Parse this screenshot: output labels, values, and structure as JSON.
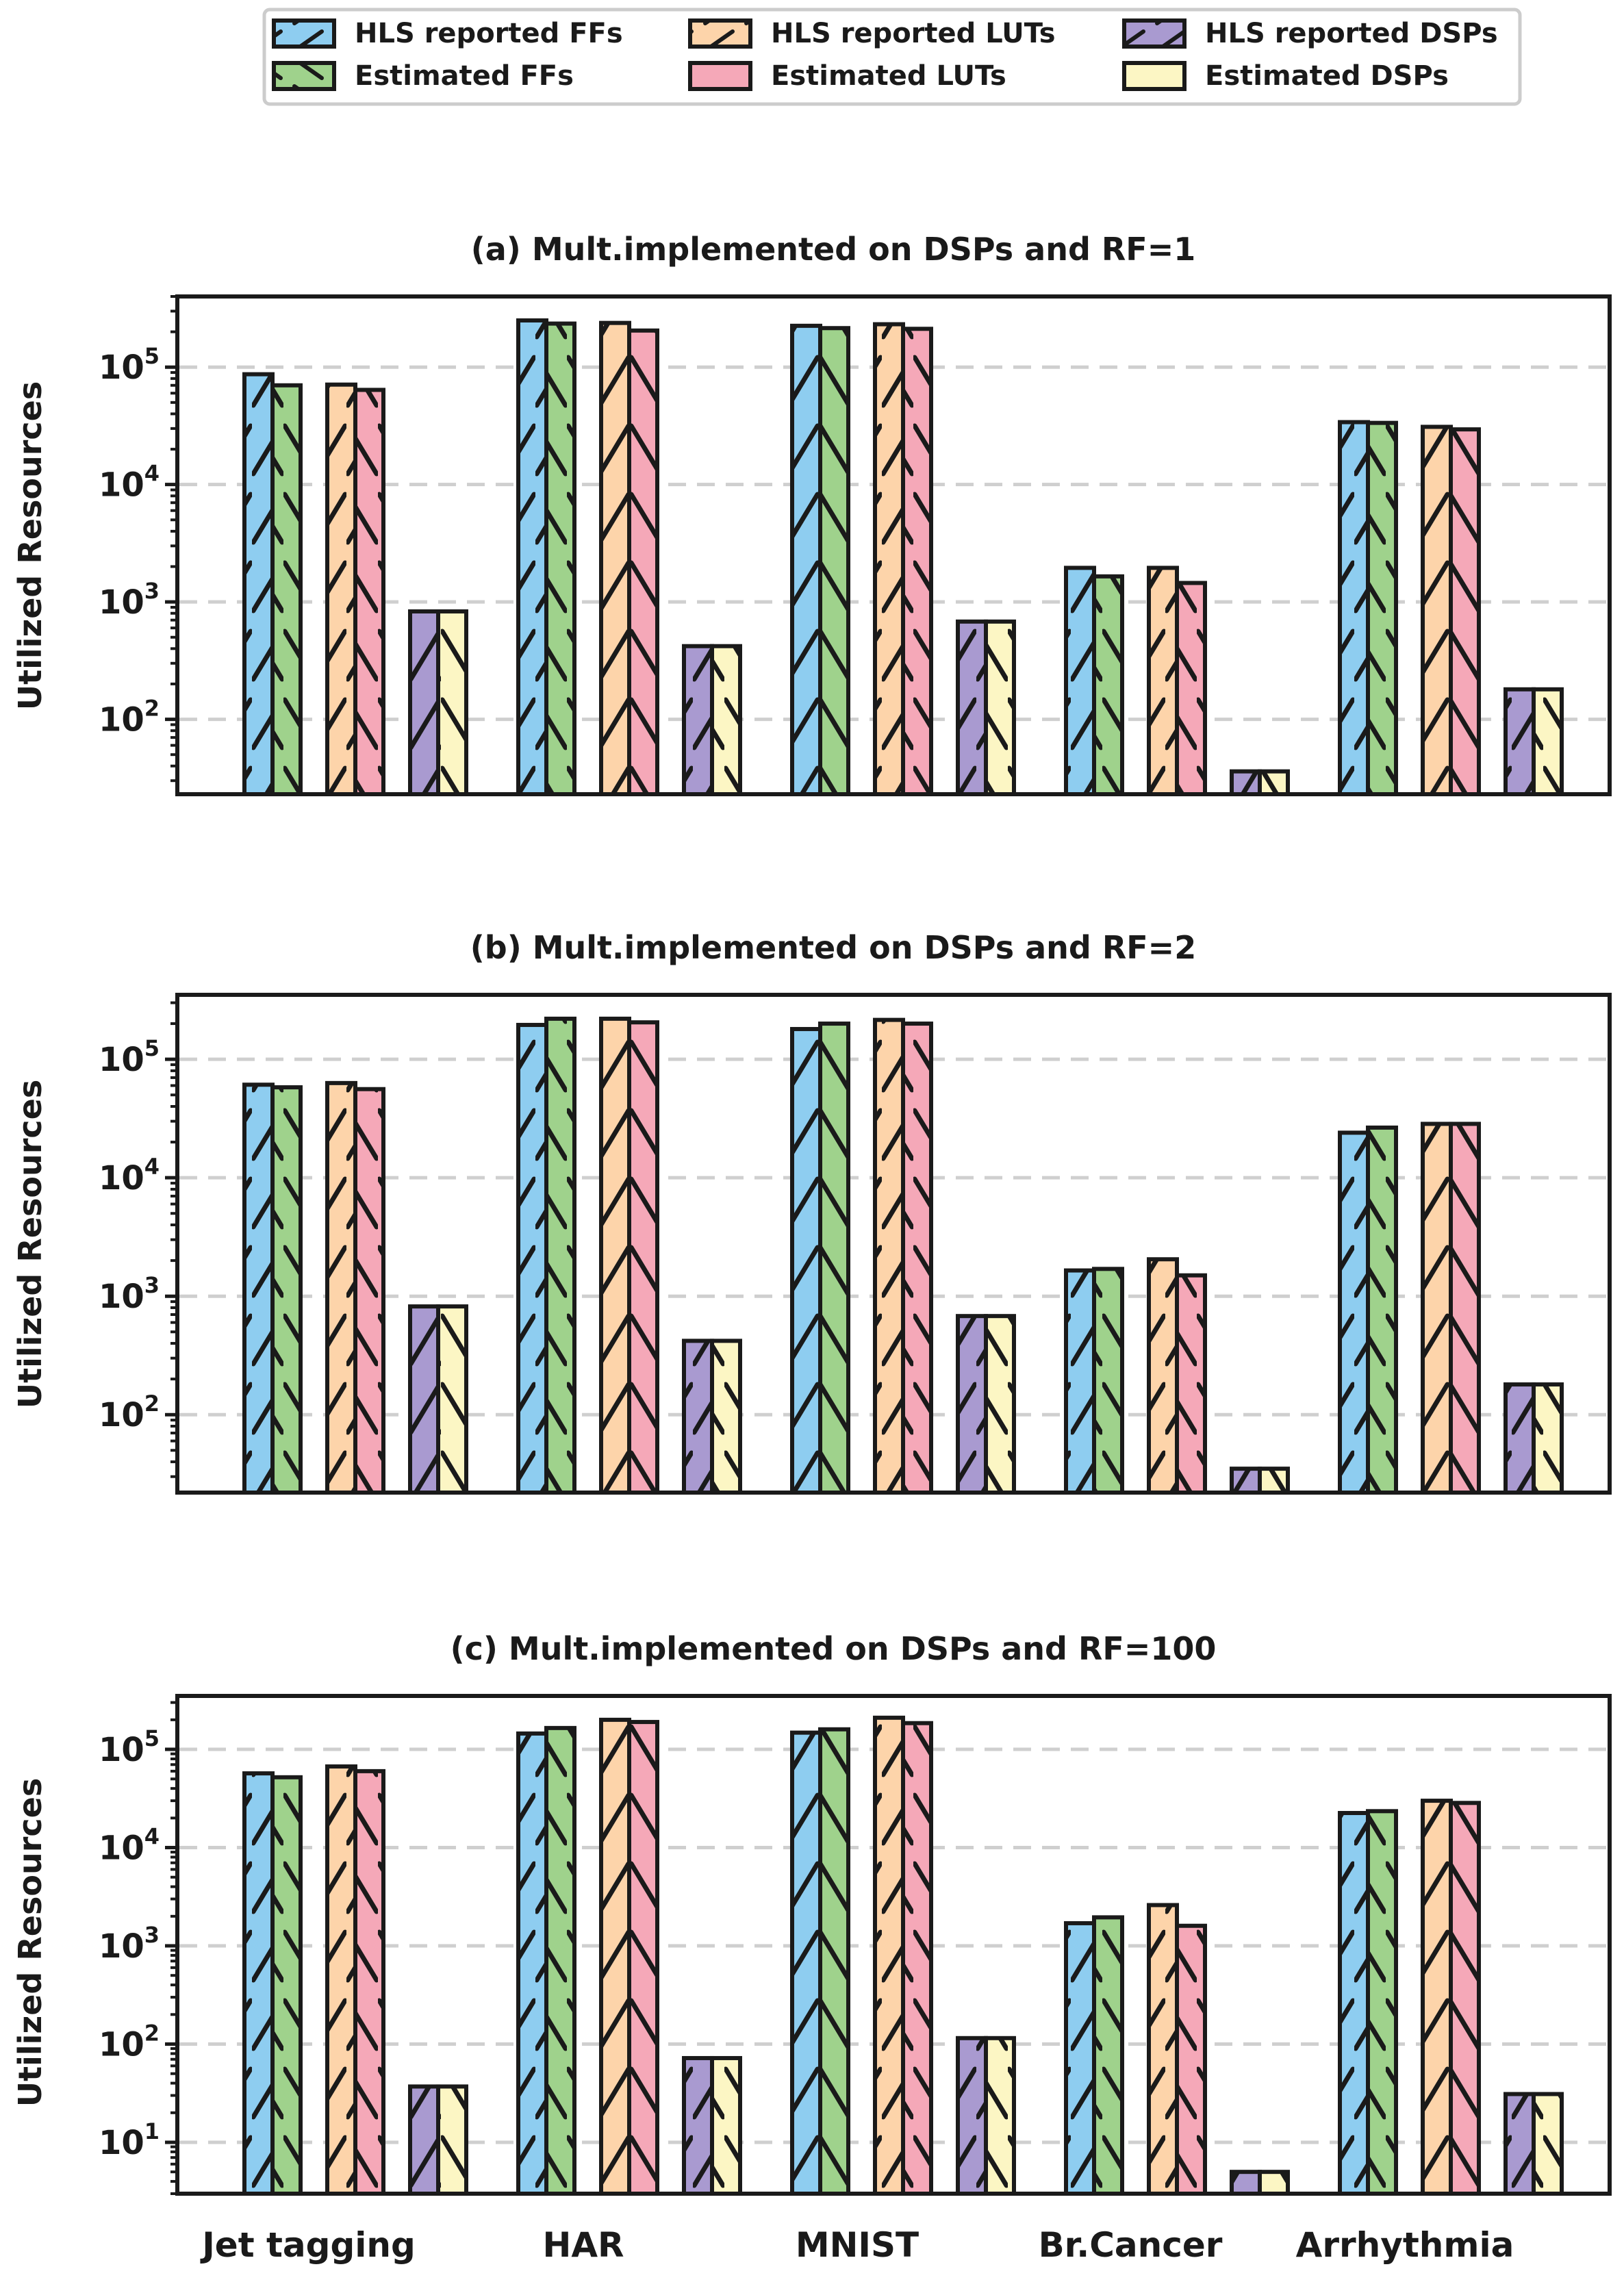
{
  "legend": {
    "entries": [
      {
        "label": "HLS reported FFs",
        "color": "#8ecdf0",
        "hatch": "fwd"
      },
      {
        "label": "Estimated FFs",
        "color": "#9fd28c",
        "hatch": "back"
      },
      {
        "label": "HLS reported LUTs",
        "color": "#fdd4aa",
        "hatch": "fwd"
      },
      {
        "label": "Estimated LUTs",
        "color": "#f5a8b8",
        "hatch": "back"
      },
      {
        "label": "HLS reported DSPs",
        "color": "#a99ad0",
        "hatch": "fwd"
      },
      {
        "label": "Estimated DSPs",
        "color": "#fcf6c4",
        "hatch": "back"
      }
    ]
  },
  "chart_data": [
    {
      "type": "bar",
      "title": "(a) Mult.implemented on DSPs and RF=1",
      "ylabel": "Utilized Resources",
      "yscale": "log",
      "ylim": [
        23,
        400000
      ],
      "yticks": [
        {
          "base": "10",
          "exp": "2",
          "value": 100
        },
        {
          "base": "10",
          "exp": "3",
          "value": 1000
        },
        {
          "base": "10",
          "exp": "4",
          "value": 10000
        },
        {
          "base": "10",
          "exp": "5",
          "value": 100000
        }
      ],
      "categories": [
        "Jet tagging",
        "HAR",
        "MNIST",
        "Br.Cancer",
        "Arrhythmia"
      ],
      "series": [
        {
          "name": "HLS reported FFs",
          "values": [
            87000,
            250000,
            225000,
            1950,
            34000
          ]
        },
        {
          "name": "Estimated FFs",
          "values": [
            70000,
            235000,
            215000,
            1650,
            33500
          ]
        },
        {
          "name": "HLS reported LUTs",
          "values": [
            71000,
            238000,
            232000,
            1950,
            31000
          ]
        },
        {
          "name": "Estimated LUTs",
          "values": [
            64000,
            205000,
            212000,
            1450,
            29500
          ]
        },
        {
          "name": "HLS reported DSPs",
          "values": [
            830,
            420,
            680,
            36,
            180
          ]
        },
        {
          "name": "Estimated DSPs",
          "values": [
            830,
            420,
            680,
            36,
            180
          ]
        }
      ]
    },
    {
      "type": "bar",
      "title": "(b) Mult.implemented on DSPs and RF=2",
      "ylabel": "Utilized Resources",
      "yscale": "log",
      "ylim": [
        22,
        350000
      ],
      "yticks": [
        {
          "base": "10",
          "exp": "2",
          "value": 100
        },
        {
          "base": "10",
          "exp": "3",
          "value": 1000
        },
        {
          "base": "10",
          "exp": "4",
          "value": 10000
        },
        {
          "base": "10",
          "exp": "5",
          "value": 100000
        }
      ],
      "categories": [
        "Jet tagging",
        "HAR",
        "MNIST",
        "Br.Cancer",
        "Arrhythmia"
      ],
      "series": [
        {
          "name": "HLS reported FFs",
          "values": [
            61000,
            195000,
            180000,
            1650,
            24000
          ]
        },
        {
          "name": "Estimated FFs",
          "values": [
            58000,
            220000,
            200000,
            1700,
            26500
          ]
        },
        {
          "name": "HLS reported LUTs",
          "values": [
            63000,
            220000,
            215000,
            2050,
            28500
          ]
        },
        {
          "name": "Estimated LUTs",
          "values": [
            56000,
            205000,
            200000,
            1500,
            28500
          ]
        },
        {
          "name": "HLS reported DSPs",
          "values": [
            820,
            420,
            680,
            35,
            180
          ]
        },
        {
          "name": "Estimated DSPs",
          "values": [
            820,
            420,
            680,
            35,
            180
          ]
        }
      ]
    },
    {
      "type": "bar",
      "title": "(c) Mult.implemented on DSPs and RF=100",
      "ylabel": "Utilized Resources",
      "yscale": "log",
      "ylim": [
        3,
        350000
      ],
      "yticks": [
        {
          "base": "10",
          "exp": "1",
          "value": 10
        },
        {
          "base": "10",
          "exp": "2",
          "value": 100
        },
        {
          "base": "10",
          "exp": "3",
          "value": 1000
        },
        {
          "base": "10",
          "exp": "4",
          "value": 10000
        },
        {
          "base": "10",
          "exp": "5",
          "value": 100000
        }
      ],
      "categories": [
        "Jet tagging",
        "HAR",
        "MNIST",
        "Br.Cancer",
        "Arrhythmia"
      ],
      "series": [
        {
          "name": "HLS reported FFs",
          "values": [
            57000,
            145000,
            148000,
            1700,
            22500
          ]
        },
        {
          "name": "Estimated FFs",
          "values": [
            52000,
            165000,
            160000,
            1950,
            23500
          ]
        },
        {
          "name": "HLS reported LUTs",
          "values": [
            67000,
            200000,
            210000,
            2600,
            30000
          ]
        },
        {
          "name": "Estimated LUTs",
          "values": [
            60000,
            190000,
            185000,
            1600,
            28500
          ]
        },
        {
          "name": "HLS reported DSPs",
          "values": [
            37,
            72,
            115,
            5,
            31
          ]
        },
        {
          "name": "Estimated DSPs",
          "values": [
            37,
            72,
            115,
            5,
            31
          ]
        }
      ]
    }
  ]
}
